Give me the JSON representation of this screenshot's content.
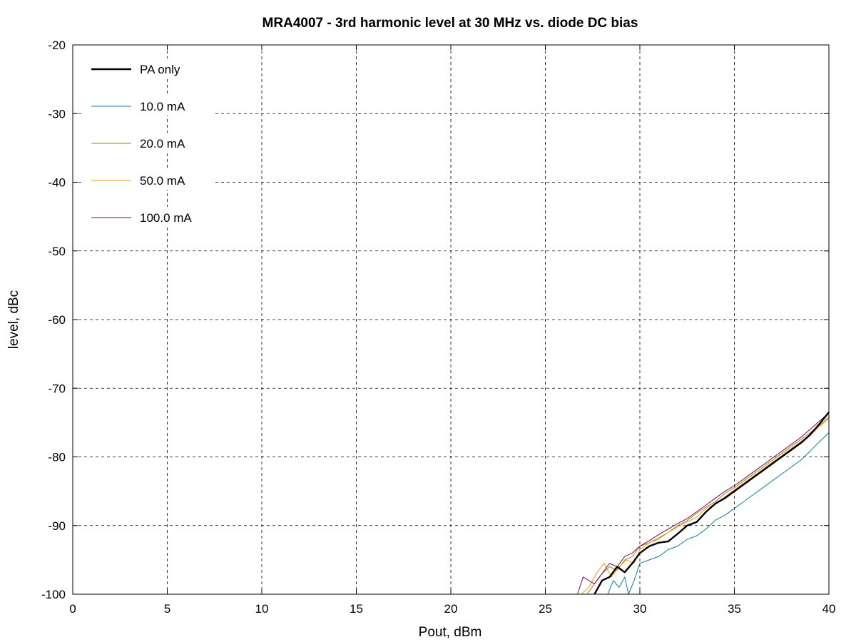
{
  "chart_data": {
    "type": "line",
    "title": "MRA4007 - 3rd harmonic level at 30 MHz vs. diode DC bias",
    "xlabel": "Pout, dBm",
    "ylabel": "level, dBc",
    "xlim": [
      0,
      40
    ],
    "ylim": [
      -100,
      -20
    ],
    "xticks": [
      0,
      5,
      10,
      15,
      20,
      25,
      30,
      35,
      40
    ],
    "yticks": [
      -20,
      -30,
      -40,
      -50,
      -60,
      -70,
      -80,
      -90,
      -100
    ],
    "grid": true,
    "legend_position": "top-left",
    "series": [
      {
        "name": "PA only",
        "color": "#000000",
        "bold": true,
        "x": [
          27.6,
          28.0,
          28.4,
          28.8,
          29.2,
          29.6,
          30.0,
          30.5,
          31.0,
          31.5,
          32.0,
          32.5,
          33.0,
          33.5,
          34.0,
          34.5,
          35.0,
          35.5,
          36.0,
          36.5,
          37.0,
          37.5,
          38.0,
          38.5,
          39.0,
          39.5,
          40.0
        ],
        "y": [
          -100.0,
          -98.0,
          -97.5,
          -96.0,
          -96.8,
          -95.5,
          -94.0,
          -93.0,
          -92.5,
          -92.3,
          -91.2,
          -90.0,
          -89.5,
          -88.0,
          -86.8,
          -86.0,
          -85.0,
          -84.0,
          -83.0,
          -82.0,
          -81.0,
          -80.0,
          -79.0,
          -78.0,
          -76.8,
          -75.2,
          -73.5
        ]
      },
      {
        "name": "10.0 mA",
        "color": "#0a7ea8",
        "bold": false,
        "x": [
          28.3,
          28.6,
          28.9,
          29.2,
          29.4,
          29.7,
          30.0,
          30.5,
          31.0,
          31.5,
          32.0,
          32.5,
          33.0,
          33.5,
          34.0,
          34.5,
          35.0,
          35.5,
          36.0,
          36.5,
          37.0,
          37.5,
          38.0,
          38.5,
          39.0,
          39.5,
          40.0
        ],
        "y": [
          -100.0,
          -98.0,
          -99.0,
          -97.5,
          -100.0,
          -98.0,
          -95.5,
          -95.0,
          -94.5,
          -93.5,
          -93.0,
          -92.0,
          -91.5,
          -90.5,
          -89.2,
          -88.5,
          -87.5,
          -86.5,
          -85.5,
          -84.5,
          -83.5,
          -82.5,
          -81.5,
          -80.5,
          -79.2,
          -77.8,
          -76.5
        ]
      },
      {
        "name": "20.0 mA",
        "color": "#b07a1e",
        "bold": false,
        "x": [
          27.2,
          27.6,
          28.0,
          28.4,
          28.8,
          29.2,
          29.6,
          30.0,
          30.5,
          31.0,
          31.5,
          32.0,
          32.5,
          33.0,
          33.5,
          34.0,
          34.5,
          35.0,
          35.5,
          36.0,
          36.5,
          37.0,
          37.5,
          38.0,
          38.5,
          39.0,
          39.5,
          40.0
        ],
        "y": [
          -100.0,
          -98.5,
          -97.0,
          -96.0,
          -96.5,
          -95.0,
          -94.5,
          -93.0,
          -92.5,
          -91.8,
          -91.0,
          -90.0,
          -89.3,
          -88.2,
          -87.3,
          -86.5,
          -85.3,
          -84.5,
          -83.5,
          -82.5,
          -81.5,
          -80.5,
          -79.5,
          -78.5,
          -77.5,
          -76.5,
          -75.4,
          -74.2
        ]
      },
      {
        "name": "50.0 mA",
        "color": "#e0a800",
        "bold": false,
        "x": [
          26.9,
          27.3,
          27.7,
          28.1,
          28.5,
          28.9,
          29.3,
          29.7,
          30.0,
          30.5,
          31.0,
          31.5,
          32.0,
          32.5,
          33.0,
          33.5,
          34.0,
          34.5,
          35.0,
          35.5,
          36.0,
          36.5,
          37.0,
          37.5,
          38.0,
          38.5,
          39.0,
          39.5,
          40.0
        ],
        "y": [
          -100.0,
          -99.0,
          -97.0,
          -95.5,
          -97.5,
          -96.0,
          -95.0,
          -95.5,
          -93.5,
          -92.5,
          -92.0,
          -91.0,
          -90.2,
          -89.5,
          -88.8,
          -87.5,
          -86.8,
          -85.8,
          -84.8,
          -83.8,
          -82.8,
          -81.8,
          -80.8,
          -79.8,
          -78.8,
          -77.8,
          -76.8,
          -75.6,
          -74.4
        ]
      },
      {
        "name": "100.0 mA",
        "color": "#800060",
        "bold": false,
        "x": [
          26.7,
          27.0,
          27.3,
          27.6,
          28.0,
          28.4,
          28.8,
          29.2,
          29.6,
          30.0,
          30.5,
          31.0,
          31.5,
          32.0,
          32.5,
          33.0,
          33.5,
          34.0,
          34.5,
          35.0,
          35.5,
          36.0,
          36.5,
          37.0,
          37.5,
          38.0,
          38.5,
          39.0,
          39.5,
          40.0
        ],
        "y": [
          -100.0,
          -97.5,
          -98.0,
          -98.5,
          -97.0,
          -95.5,
          -96.0,
          -94.5,
          -94.0,
          -93.0,
          -92.2,
          -91.3,
          -90.5,
          -89.7,
          -89.0,
          -88.0,
          -87.0,
          -86.0,
          -85.0,
          -84.2,
          -83.2,
          -82.2,
          -81.2,
          -80.2,
          -79.2,
          -78.2,
          -77.2,
          -76.0,
          -74.8,
          -73.6
        ]
      }
    ]
  }
}
